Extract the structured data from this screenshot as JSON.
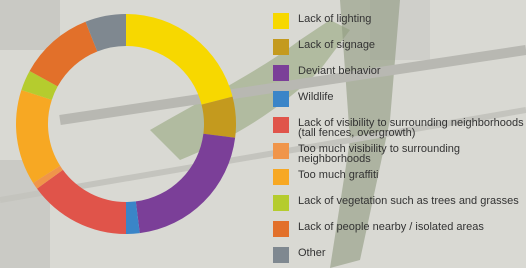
{
  "chart_data": {
    "type": "donut",
    "categories": [
      "Lack of lighting",
      "Lack of signage",
      "Deviant behavior",
      "Wildlife",
      "Lack of visibility to surrounding neighborhoods (tall fences, overgrowth)",
      "Too much visibility to surrounding neighborhoods",
      "Too much graffiti",
      "Lack of vegetation such as trees and grasses",
      "Lack of people nearby / isolated areas",
      "Other"
    ],
    "values": [
      21,
      6,
      21,
      2,
      15,
      1,
      14,
      3,
      11,
      6
    ],
    "colors": [
      "#f7d800",
      "#c49a1e",
      "#7b3f98",
      "#3a85c8",
      "#e0544a",
      "#f0954a",
      "#f7a823",
      "#b5cc2e",
      "#e2702a",
      "#7f8890"
    ]
  }
}
